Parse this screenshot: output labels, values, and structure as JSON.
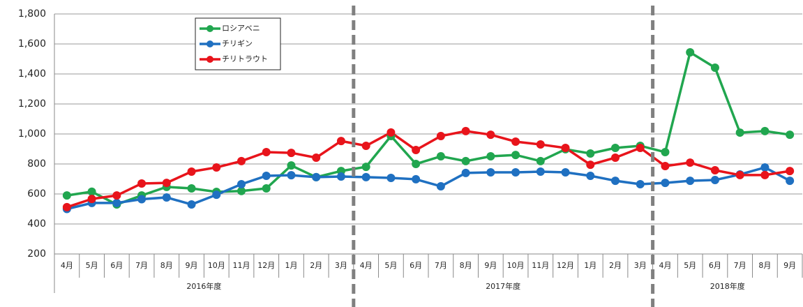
{
  "chart_data": {
    "type": "line",
    "groups": [
      {
        "label": "2016年度",
        "categories": [
          "4月",
          "5月",
          "6月",
          "7月",
          "8月",
          "9月",
          "10月",
          "11月",
          "12月",
          "1月",
          "2月",
          "3月"
        ]
      },
      {
        "label": "2017年度",
        "categories": [
          "4月",
          "5月",
          "6月",
          "7月",
          "8月",
          "9月",
          "10月",
          "11月",
          "12月",
          "1月",
          "2月",
          "3月"
        ]
      },
      {
        "label": "2018年度",
        "categories": [
          "4月",
          "5月",
          "6月",
          "7月",
          "8月",
          "9月"
        ]
      }
    ],
    "series": [
      {
        "name": "ロシアベニ",
        "color": "#21a64f",
        "values": [
          590,
          615,
          530,
          590,
          647,
          637,
          614,
          620,
          637,
          790,
          712,
          753,
          781,
          986,
          800,
          851,
          819,
          851,
          860,
          819,
          898,
          870,
          907,
          921,
          879,
          1544,
          1442,
          1009,
          1019,
          995
        ]
      },
      {
        "name": "チリギン",
        "color": "#1f70c1",
        "values": [
          500,
          540,
          540,
          565,
          577,
          530,
          595,
          665,
          721,
          725,
          712,
          716,
          712,
          707,
          698,
          651,
          740,
          744,
          744,
          749,
          744,
          721,
          688,
          665,
          674,
          688,
          693,
          730,
          777,
          688
        ]
      },
      {
        "name": "チリトラウト",
        "color": "#e8141b",
        "values": [
          512,
          567,
          590,
          670,
          674,
          749,
          777,
          819,
          879,
          874,
          842,
          953,
          921,
          1010,
          893,
          986,
          1019,
          995,
          949,
          930,
          907,
          795,
          842,
          907,
          786,
          809,
          758,
          726,
          726,
          753
        ]
      }
    ],
    "ylim": [
      200,
      1800
    ],
    "yticks": [
      200,
      400,
      600,
      800,
      {
        "value": 1000,
        "label": "1,000"
      },
      {
        "value": 1200,
        "label": "1,200"
      },
      {
        "value": 1400,
        "label": "1,400"
      },
      {
        "value": 1600,
        "label": "1,600"
      },
      {
        "value": 1800,
        "label": "1,800"
      }
    ],
    "grid": true,
    "legend": "upper-left"
  }
}
